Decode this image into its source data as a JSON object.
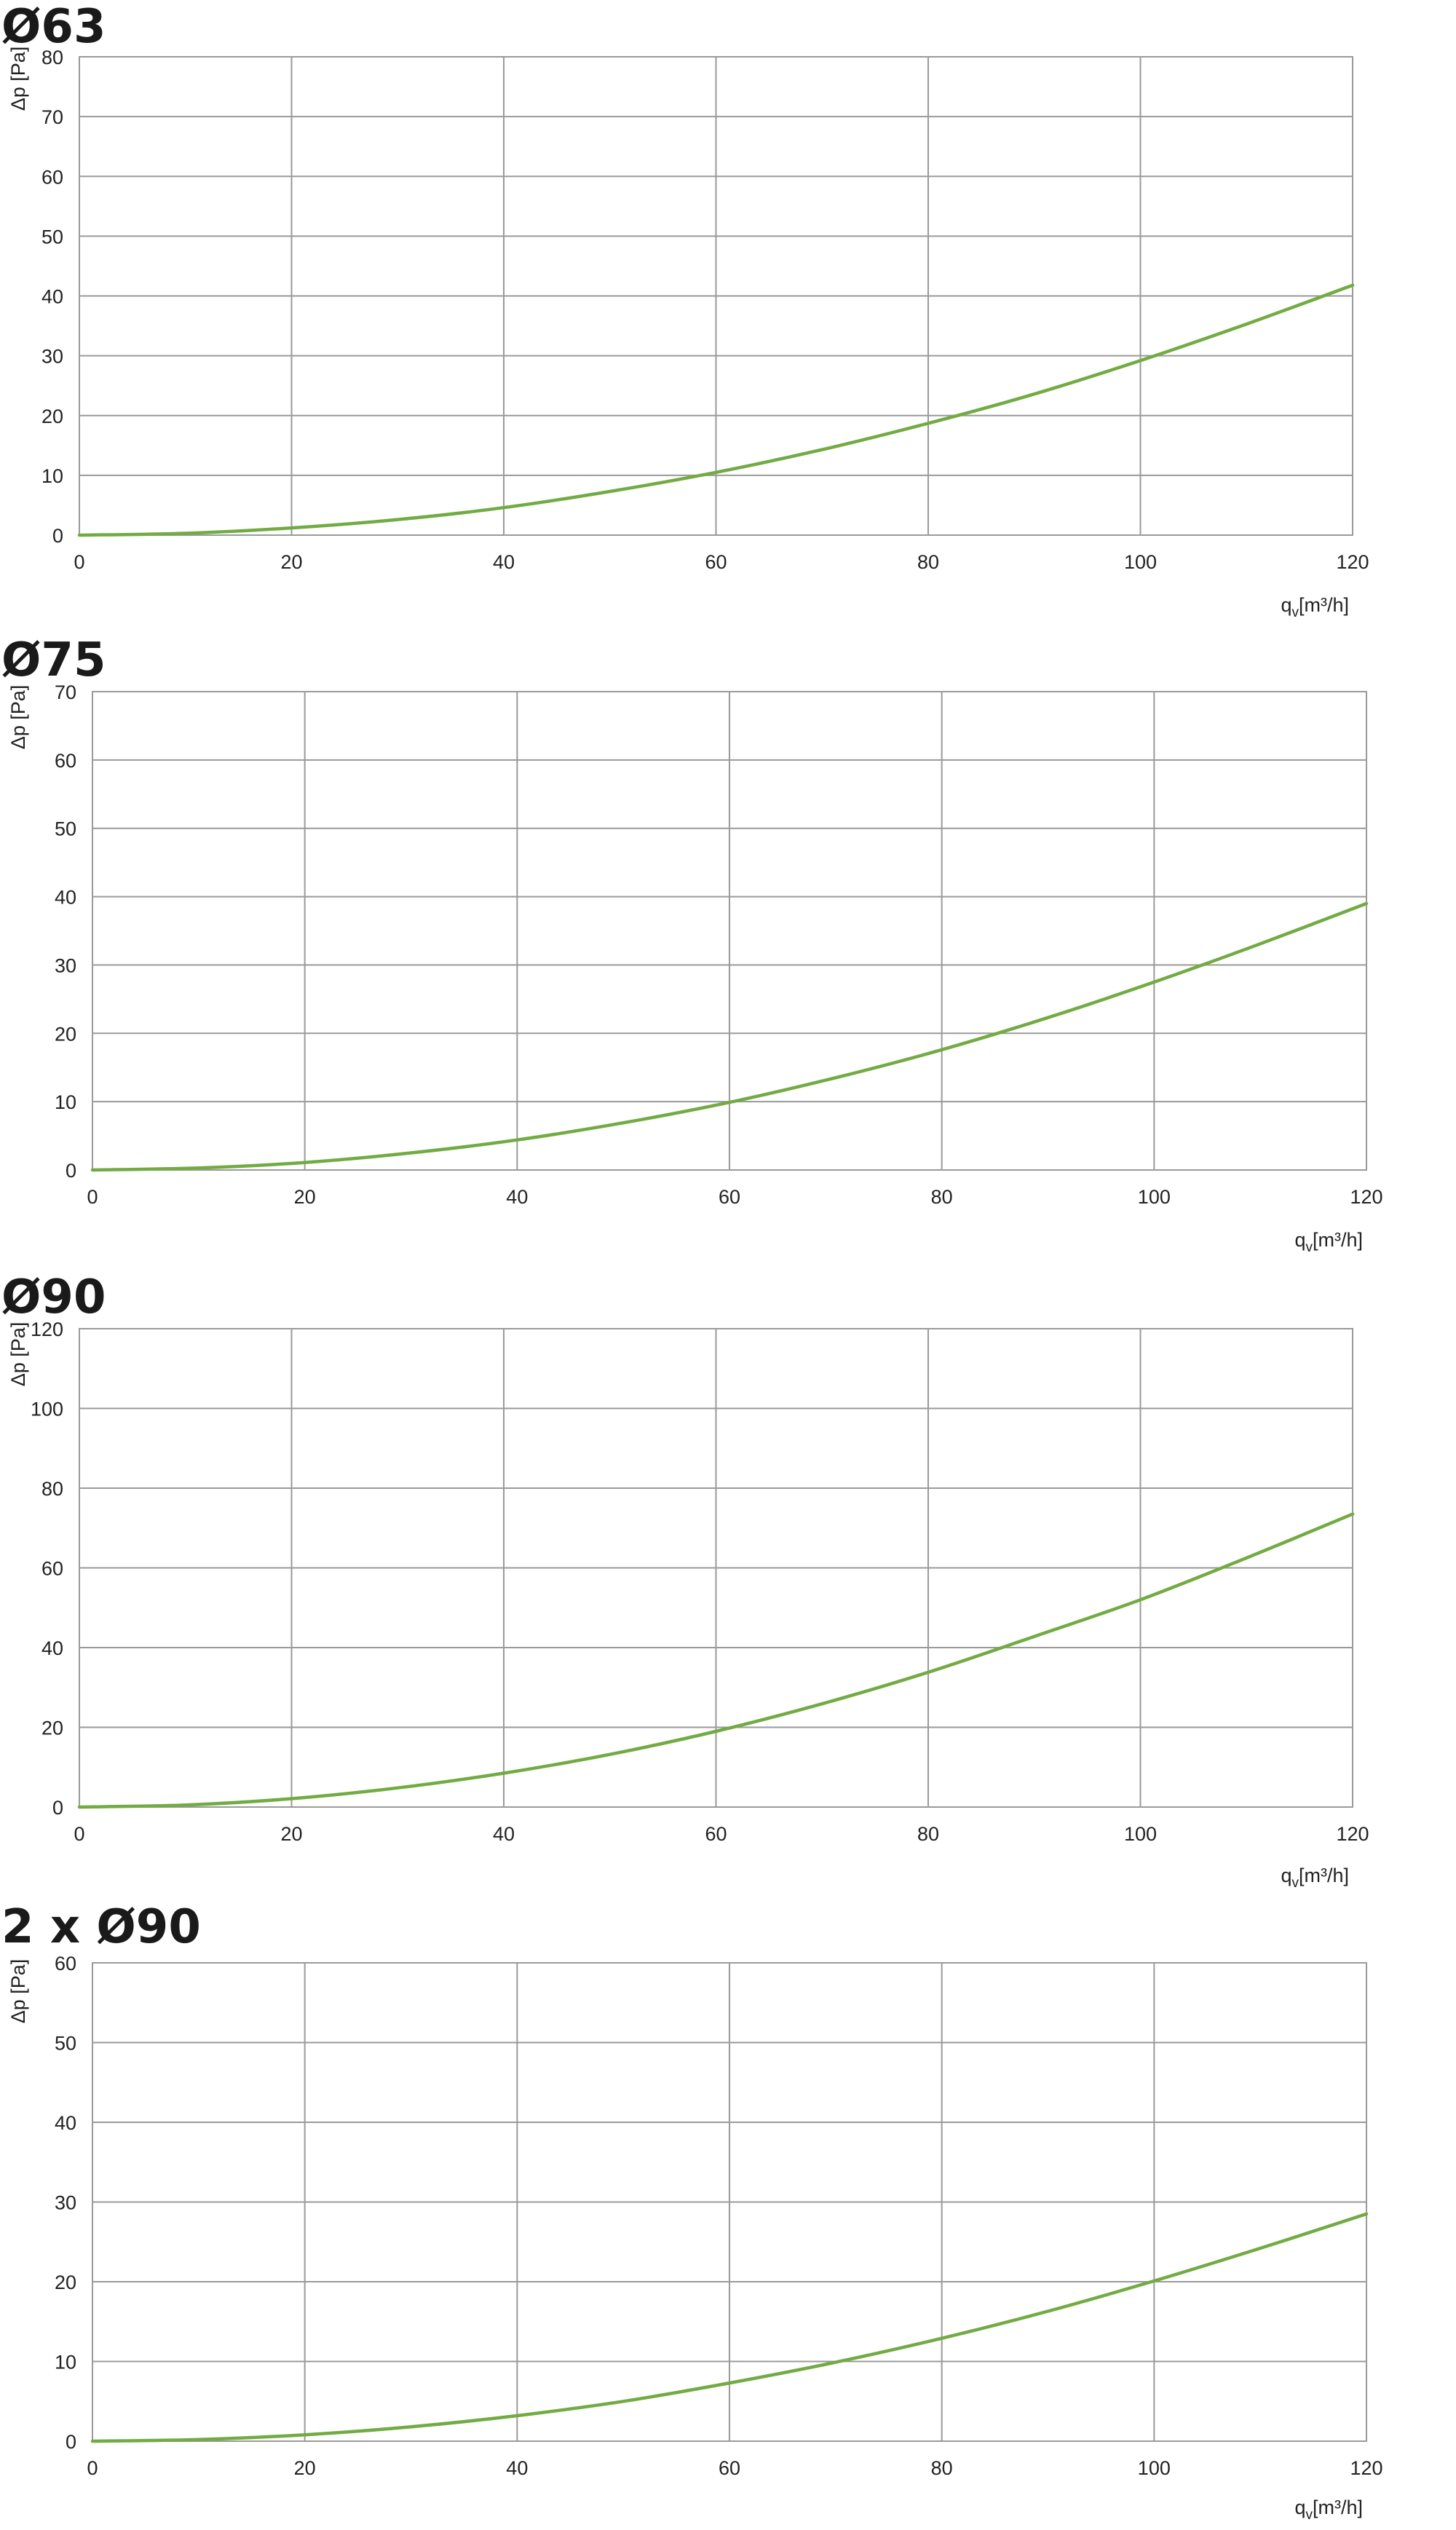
{
  "colors": {
    "curve": "#72ab43",
    "grid": "#9a9a9a",
    "text": "#222222"
  },
  "chart_data": [
    {
      "type": "line",
      "title": "Ø63",
      "xlabel": "q_v [m³/h]",
      "ylabel": "Δp [Pa]",
      "xlim": [
        0,
        120
      ],
      "ylim": [
        0,
        80
      ],
      "xticks": [
        0,
        20,
        40,
        60,
        80,
        100,
        120
      ],
      "yticks": [
        0,
        10,
        20,
        30,
        40,
        50,
        60,
        70,
        80
      ],
      "grid": true,
      "series": [
        {
          "x": [
            0,
            10,
            20,
            30,
            40,
            50,
            60,
            70,
            80,
            90,
            100,
            110,
            120
          ],
          "y": [
            0,
            0.3,
            1.2,
            2.6,
            4.6,
            7.3,
            10.5,
            14.3,
            18.7,
            23.6,
            29.2,
            35.3,
            41.8
          ]
        }
      ]
    },
    {
      "type": "line",
      "title": "Ø75",
      "xlabel": "q_v [m³/h]",
      "ylabel": "Δp [Pa]",
      "xlim": [
        0,
        120
      ],
      "ylim": [
        0,
        70
      ],
      "xticks": [
        0,
        20,
        40,
        60,
        80,
        100,
        120
      ],
      "yticks": [
        0,
        10,
        20,
        30,
        40,
        50,
        60,
        70
      ],
      "grid": true,
      "series": [
        {
          "x": [
            0,
            10,
            20,
            30,
            40,
            50,
            60,
            70,
            80,
            90,
            100,
            110,
            120
          ],
          "y": [
            0,
            0.3,
            1.1,
            2.5,
            4.4,
            6.9,
            9.9,
            13.5,
            17.6,
            22.3,
            27.5,
            33.1,
            39.0
          ]
        }
      ]
    },
    {
      "type": "line",
      "title": "Ø90",
      "xlabel": "q_v [m³/h]",
      "ylabel": "Δp [Pa]",
      "xlim": [
        0,
        120
      ],
      "ylim": [
        0,
        120
      ],
      "xticks": [
        0,
        20,
        40,
        60,
        80,
        100,
        120
      ],
      "yticks": [
        0,
        20,
        40,
        60,
        80,
        100,
        120
      ],
      "grid": true,
      "series": [
        {
          "x": [
            0,
            10,
            20,
            30,
            40,
            50,
            60,
            70,
            80,
            90,
            100,
            110,
            120
          ],
          "y": [
            0,
            0.5,
            2.1,
            4.8,
            8.5,
            13.2,
            19.0,
            25.9,
            33.8,
            42.8,
            52.0,
            62.5,
            73.5
          ]
        }
      ]
    },
    {
      "type": "line",
      "title": "2 x Ø90",
      "xlabel": "q_v [m³/h]",
      "ylabel": "Δp [Pa]",
      "xlim": [
        0,
        120
      ],
      "ylim": [
        0,
        60
      ],
      "xticks": [
        0,
        20,
        40,
        60,
        80,
        100,
        120
      ],
      "yticks": [
        0,
        10,
        20,
        30,
        40,
        50,
        60
      ],
      "grid": true,
      "series": [
        {
          "x": [
            0,
            10,
            20,
            30,
            40,
            50,
            60,
            70,
            80,
            90,
            100,
            110,
            120
          ],
          "y": [
            0,
            0.2,
            0.8,
            1.8,
            3.2,
            5.0,
            7.3,
            9.9,
            12.9,
            16.3,
            20.1,
            24.2,
            28.5
          ]
        }
      ]
    }
  ]
}
